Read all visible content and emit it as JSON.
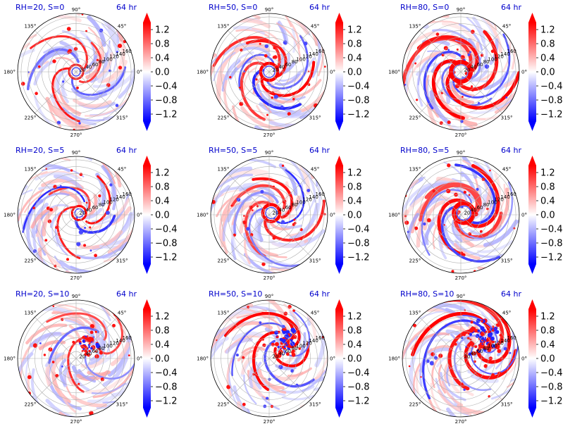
{
  "chart_data": {
    "type": "polar-heatmap-grid",
    "time_label": "64 hr",
    "angle_ticks": [
      "0°",
      "45°",
      "90°",
      "135°",
      "180°",
      "225°",
      "270°",
      "315°"
    ],
    "radial_ticks": [
      "20",
      "40",
      "60",
      "80",
      "100",
      "120",
      "140",
      "160"
    ],
    "radial_values": [
      20,
      40,
      60,
      80,
      100,
      120,
      140,
      160
    ],
    "colorbar": {
      "ticks": [
        "1.2",
        "0.8",
        "0.4",
        "0.0",
        "−0.4",
        "−0.8",
        "−1.2"
      ],
      "tick_values": [
        1.2,
        0.8,
        0.4,
        0.0,
        -0.4,
        -0.8,
        -1.2
      ],
      "range": [
        -1.4,
        1.4
      ],
      "colormap": "bwr",
      "extend": "both",
      "colors": {
        "low": "#0000ff",
        "mid": "#ffffff",
        "high": "#ff0000"
      }
    },
    "title_color": "#0000cc",
    "panels": [
      {
        "title": "RH=20, S=0"
      },
      {
        "title": "RH=50, S=0"
      },
      {
        "title": "RH=80, S=0"
      },
      {
        "title": "RH=20, S=5"
      },
      {
        "title": "RH=50, S=5"
      },
      {
        "title": "RH=80, S=5"
      },
      {
        "title": "RH=20, S=10"
      },
      {
        "title": "RH=50, S=10"
      },
      {
        "title": "RH=80, S=10"
      }
    ]
  }
}
